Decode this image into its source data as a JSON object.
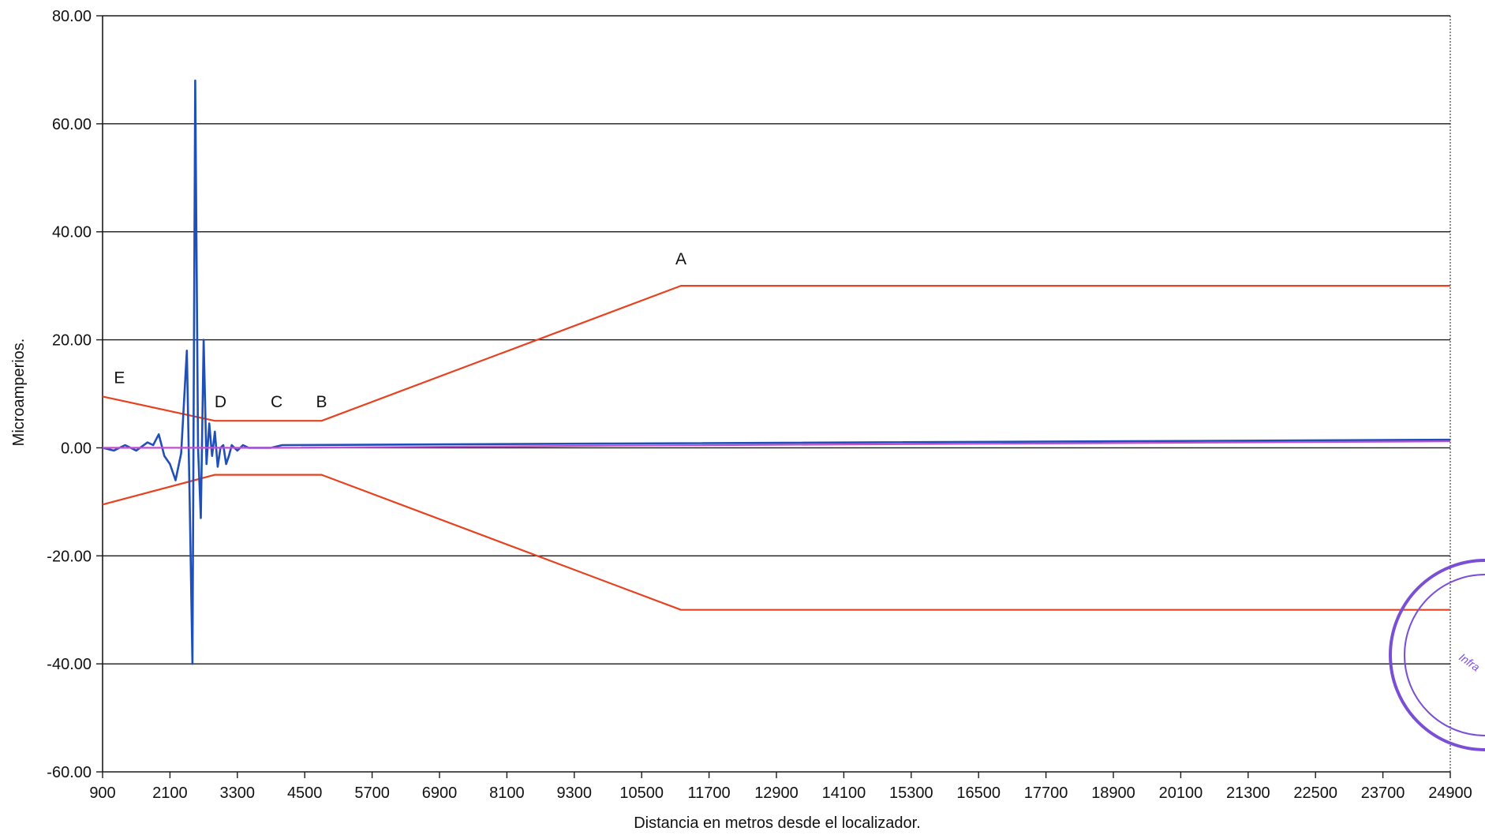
{
  "chart_data": {
    "type": "line",
    "xlabel": "Distancia en metros desde el localizador.",
    "ylabel": "Microamperios.",
    "xlim": [
      900,
      24900
    ],
    "ylim": [
      -60,
      80
    ],
    "x_ticks": [
      "900",
      "2100",
      "3300",
      "4500",
      "5700",
      "6900",
      "8100",
      "9300",
      "10500",
      "11700",
      "12900",
      "14100",
      "15300",
      "16500",
      "17700",
      "18900",
      "20100",
      "21300",
      "22500",
      "23700",
      "24900"
    ],
    "y_ticks": [
      "80.00",
      "60.00",
      "40.00",
      "20.00",
      "0.00",
      "-20.00",
      "-40.00",
      "-60.00"
    ],
    "y_tick_values": [
      80,
      60,
      40,
      20,
      0,
      -20,
      -40,
      -60
    ],
    "grid": "horizontal",
    "legend": "none",
    "annotations": [
      {
        "label": "A",
        "x": 11200,
        "y": 34
      },
      {
        "label": "B",
        "x": 4800,
        "y": 7.5
      },
      {
        "label": "C",
        "x": 4000,
        "y": 7.5
      },
      {
        "label": "D",
        "x": 3000,
        "y": 7.5
      },
      {
        "label": "E",
        "x": 1200,
        "y": 12
      }
    ],
    "series": [
      {
        "color": "#e8411e",
        "x": [
          900,
          2900,
          4800,
          11200,
          24900
        ],
        "y": [
          9.5,
          5,
          5,
          30,
          30
        ]
      },
      {
        "color": "#e8411e",
        "x": [
          900,
          2900,
          4800,
          11200,
          24900
        ],
        "y": [
          -10.5,
          -5,
          -5,
          -30,
          -30
        ]
      },
      {
        "color": "#1f4fb8",
        "x": [
          900,
          1100,
          1300,
          1500,
          1700,
          1800,
          1900,
          2000,
          2100,
          2200,
          2300,
          2400,
          2450,
          2500,
          2550,
          2600,
          2650,
          2700,
          2750,
          2800,
          2850,
          2900,
          2950,
          3000,
          3050,
          3100,
          3150,
          3200,
          3300,
          3400,
          3500,
          3700,
          3900,
          4100,
          10000,
          24900
        ],
        "y": [
          0,
          -0.5,
          0.5,
          -0.5,
          1,
          0.5,
          2.5,
          -1.5,
          -3,
          -6,
          -1,
          18,
          -9,
          -40,
          68,
          0,
          -13,
          20,
          -3,
          4.5,
          -1.5,
          3,
          -3.5,
          0,
          0.5,
          -3,
          -1.5,
          0.5,
          -0.5,
          0.5,
          0,
          0,
          0,
          0.5,
          0.8,
          1.5
        ]
      },
      {
        "color": "#c24fd0",
        "x": [
          900,
          2000,
          3000,
          4100,
          10000,
          24900
        ],
        "y": [
          0,
          0,
          0,
          0,
          0.4,
          1.2
        ]
      }
    ]
  },
  "stamp": {
    "color": "#7a4fd6",
    "text": "Infra"
  }
}
